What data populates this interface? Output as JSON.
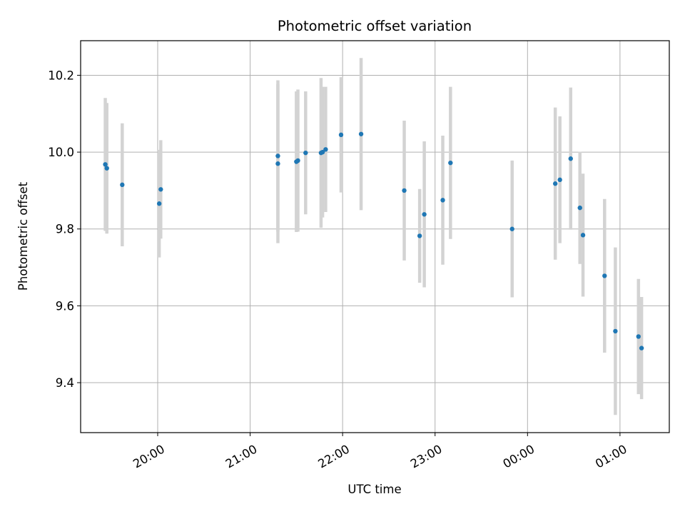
{
  "chart_data": {
    "type": "scatter",
    "title": "Photometric offset variation",
    "xlabel": "UTC time",
    "ylabel": "Photometric offset",
    "x_axis_kind": "time",
    "xlim": [
      "19:10",
      "01:32"
    ],
    "ylim": [
      9.27,
      10.29
    ],
    "grid": true,
    "x_ticks": [
      "20:00",
      "21:00",
      "22:00",
      "23:00",
      "00:00",
      "01:00"
    ],
    "y_ticks": [
      "9.4",
      "9.6",
      "9.8",
      "10.0",
      "10.2"
    ],
    "colors": {
      "point": "#1f77b4",
      "errorbar": "#d3d3d3",
      "grid": "#b0b0b0",
      "axes": "#000000"
    },
    "points": [
      {
        "t": "19:26",
        "y": 9.968,
        "err": 0.173
      },
      {
        "t": "19:27",
        "y": 9.958,
        "err": 0.17
      },
      {
        "t": "19:37",
        "y": 9.915,
        "err": 0.16
      },
      {
        "t": "20:01",
        "y": 9.866,
        "err": 0.14
      },
      {
        "t": "20:02",
        "y": 9.903,
        "err": 0.128
      },
      {
        "t": "21:18",
        "y": 9.97,
        "err": 0.207
      },
      {
        "t": "21:18",
        "y": 9.99,
        "err": 0.197
      },
      {
        "t": "21:30",
        "y": 9.975,
        "err": 0.183
      },
      {
        "t": "21:31",
        "y": 9.978,
        "err": 0.185
      },
      {
        "t": "21:36",
        "y": 9.998,
        "err": 0.16
      },
      {
        "t": "21:46",
        "y": 9.998,
        "err": 0.195
      },
      {
        "t": "21:47",
        "y": 10.0,
        "err": 0.17
      },
      {
        "t": "21:49",
        "y": 10.007,
        "err": 0.163
      },
      {
        "t": "21:59",
        "y": 10.045,
        "err": 0.15
      },
      {
        "t": "22:12",
        "y": 10.047,
        "err": 0.198
      },
      {
        "t": "22:40",
        "y": 9.9,
        "err": 0.182
      },
      {
        "t": "22:50",
        "y": 9.782,
        "err": 0.122
      },
      {
        "t": "22:53",
        "y": 9.838,
        "err": 0.19
      },
      {
        "t": "23:05",
        "y": 9.875,
        "err": 0.168
      },
      {
        "t": "23:10",
        "y": 9.972,
        "err": 0.198
      },
      {
        "t": "23:50",
        "y": 9.8,
        "err": 0.178
      },
      {
        "t": "00:18",
        "y": 9.918,
        "err": 0.198
      },
      {
        "t": "00:21",
        "y": 9.928,
        "err": 0.165
      },
      {
        "t": "00:28",
        "y": 9.983,
        "err": 0.185
      },
      {
        "t": "00:34",
        "y": 9.855,
        "err": 0.146
      },
      {
        "t": "00:36",
        "y": 9.784,
        "err": 0.16
      },
      {
        "t": "00:50",
        "y": 9.678,
        "err": 0.2
      },
      {
        "t": "00:57",
        "y": 9.534,
        "err": 0.218
      },
      {
        "t": "01:12",
        "y": 9.52,
        "err": 0.15
      },
      {
        "t": "01:14",
        "y": 9.49,
        "err": 0.133
      }
    ]
  }
}
